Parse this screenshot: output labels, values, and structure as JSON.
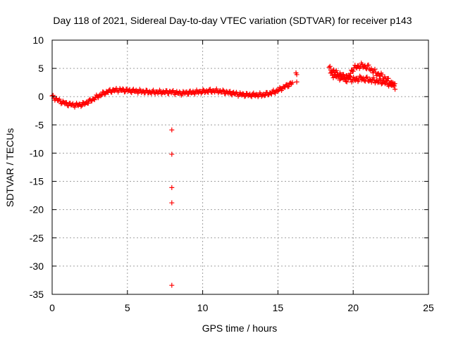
{
  "chart_data": {
    "type": "scatter",
    "title": "Day 118 of 2021, Sidereal Day-to-day VTEC variation (SDTVAR) for receiver p143",
    "xlabel": "GPS time / hours",
    "ylabel": "SDTVAR / TECUs",
    "xlim": [
      0,
      25
    ],
    "ylim": [
      -35,
      10
    ],
    "xticks": [
      0,
      5,
      10,
      15,
      20,
      25
    ],
    "yticks": [
      10,
      5,
      0,
      -5,
      -10,
      -15,
      -20,
      -25,
      -30,
      -35
    ],
    "xtick_labels": [
      "0",
      "5",
      "10",
      "15",
      "20",
      "25"
    ],
    "ytick_labels": [
      "10",
      "5",
      "0",
      "-5",
      "-10",
      "-15",
      "-20",
      "-25",
      "-30",
      "-35"
    ],
    "grid": true,
    "marker": "+",
    "color": "#ff0000",
    "series": [
      {
        "name": "SDTVAR",
        "curve": [
          [
            0.0,
            0.0
          ],
          [
            0.5,
            -0.8
          ],
          [
            1.0,
            -1.3
          ],
          [
            1.5,
            -1.5
          ],
          [
            2.0,
            -1.4
          ],
          [
            2.5,
            -0.8
          ],
          [
            3.0,
            0.0
          ],
          [
            3.5,
            0.7
          ],
          [
            4.0,
            1.1
          ],
          [
            4.5,
            1.2
          ],
          [
            5.0,
            1.1
          ],
          [
            5.5,
            1.0
          ],
          [
            6.0,
            0.9
          ],
          [
            6.5,
            0.8
          ],
          [
            7.0,
            0.8
          ],
          [
            7.5,
            0.8
          ],
          [
            8.0,
            0.8
          ],
          [
            8.5,
            0.6
          ],
          [
            9.0,
            0.7
          ],
          [
            9.5,
            0.8
          ],
          [
            10.0,
            0.9
          ],
          [
            10.5,
            1.0
          ],
          [
            11.0,
            1.0
          ],
          [
            11.5,
            0.8
          ],
          [
            12.0,
            0.6
          ],
          [
            12.5,
            0.4
          ],
          [
            13.0,
            0.3
          ],
          [
            13.5,
            0.3
          ],
          [
            14.0,
            0.3
          ],
          [
            14.5,
            0.6
          ],
          [
            15.0,
            1.1
          ],
          [
            15.5,
            1.8
          ],
          [
            16.0,
            2.5
          ]
        ],
        "band_a": [
          [
            18.4,
            5.0
          ],
          [
            19.0,
            4.0
          ],
          [
            19.5,
            3.5
          ],
          [
            20.0,
            3.0
          ],
          [
            20.5,
            3.2
          ],
          [
            21.0,
            3.0
          ],
          [
            21.5,
            2.8
          ],
          [
            22.0,
            2.6
          ],
          [
            22.5,
            2.2
          ],
          [
            22.8,
            1.8
          ]
        ],
        "band_b": [
          [
            18.5,
            4.0
          ],
          [
            19.0,
            3.5
          ],
          [
            19.6,
            3.0
          ],
          [
            20.0,
            5.0
          ],
          [
            20.5,
            5.5
          ],
          [
            21.0,
            5.2
          ],
          [
            21.5,
            4.2
          ],
          [
            22.0,
            3.5
          ],
          [
            22.5,
            2.5
          ],
          [
            22.8,
            1.8
          ]
        ],
        "outliers": [
          [
            7.95,
            -5.9
          ],
          [
            7.95,
            -10.2
          ],
          [
            7.95,
            -16.1
          ],
          [
            7.95,
            -18.8
          ],
          [
            7.95,
            -33.4
          ],
          [
            16.2,
            4.2
          ],
          [
            16.25,
            3.9
          ],
          [
            16.25,
            2.6
          ]
        ]
      }
    ]
  }
}
